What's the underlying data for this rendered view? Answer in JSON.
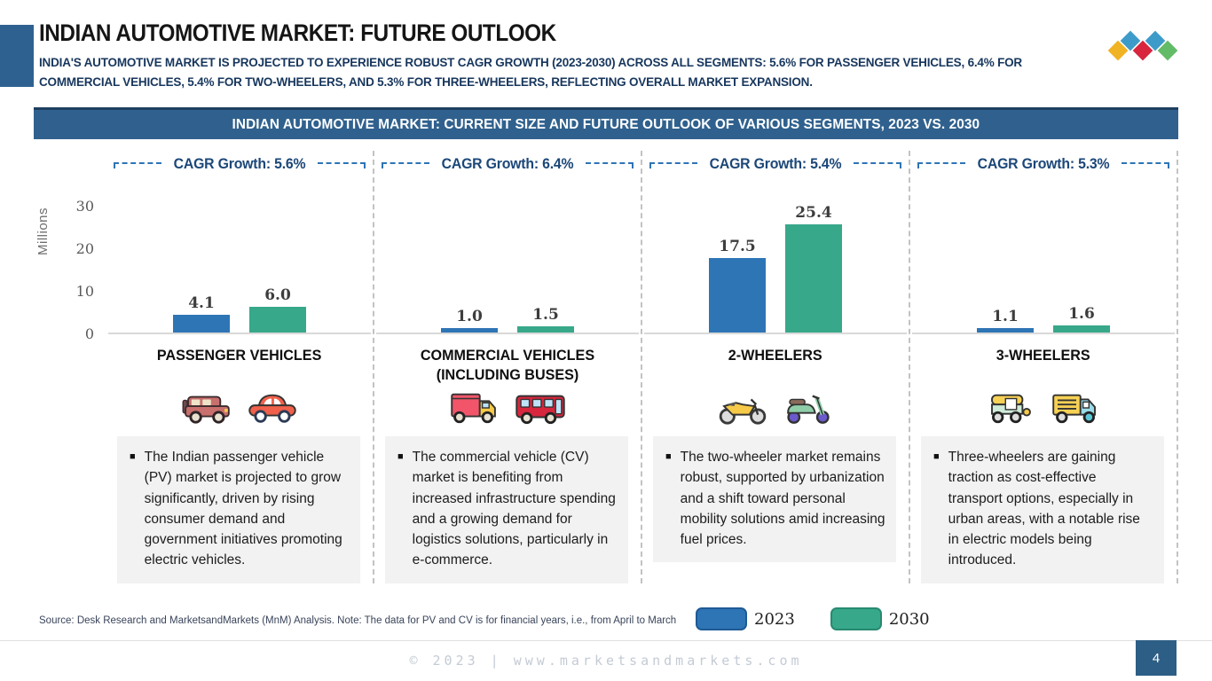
{
  "slide": {
    "title": "INDIAN AUTOMOTIVE MARKET: FUTURE OUTLOOK",
    "subtitle": "INDIA'S AUTOMOTIVE MARKET IS PROJECTED TO EXPERIENCE ROBUST CAGR GROWTH (2023-2030) ACROSS ALL SEGMENTS: 5.6% FOR PASSENGER VEHICLES, 6.4% FOR COMMERCIAL VEHICLES, 5.4% FOR TWO-WHEELERS, AND 5.3% FOR THREE-WHEELERS, REFLECTING OVERALL MARKET EXPANSION.",
    "banner_title": "INDIAN AUTOMOTIVE MARKET: CURRENT SIZE AND FUTURE OUTLOOK OF VARIOUS SEGMENTS, 2023 VS. 2030"
  },
  "chart_data": {
    "type": "bar",
    "title": "INDIAN AUTOMOTIVE MARKET: CURRENT SIZE AND FUTURE OUTLOOK OF VARIOUS SEGMENTS, 2023 VS. 2030",
    "categories": [
      "PASSENGER VEHICLES",
      "COMMERCIAL VEHICLES (INCLUDING BUSES)",
      "2-WHEELERS",
      "3-WHEELERS"
    ],
    "series": [
      {
        "name": "2023",
        "color": "#2E75B6",
        "values": [
          4.1,
          1.0,
          17.5,
          1.1
        ]
      },
      {
        "name": "2030",
        "color": "#38A88A",
        "values": [
          6.0,
          1.5,
          25.4,
          1.6
        ]
      }
    ],
    "annotations": [
      "CAGR Growth: 5.6%",
      "CAGR Growth: 6.4%",
      "CAGR Growth: 5.4%",
      "CAGR Growth: 5.3%"
    ],
    "xlabel": "",
    "ylabel": "Millions",
    "ylim": [
      0,
      30
    ],
    "yticks": [
      0,
      10,
      20,
      30
    ],
    "grid": false,
    "legend_position": "bottom"
  },
  "axis": {
    "unit_label": "Millions",
    "ticks": [
      "30",
      "20",
      "10",
      "0"
    ]
  },
  "panels": [
    {
      "cagr_label": "CAGR Growth: 5.6%",
      "segment_title": "PASSENGER VEHICLES",
      "label_2023": "4.1",
      "label_2030": "6.0",
      "icons": [
        "suv-icon",
        "car-icon"
      ],
      "description": "The Indian passenger vehicle (PV) market is projected to grow significantly, driven by rising consumer demand and government initiatives promoting electric vehicles."
    },
    {
      "cagr_label": "CAGR Growth: 6.4%",
      "segment_title": "COMMERCIAL VEHICLES (INCLUDING BUSES)",
      "label_2023": "1.0",
      "label_2030": "1.5",
      "icons": [
        "truck-icon",
        "bus-icon"
      ],
      "description": "The commercial vehicle (CV) market is benefiting from increased infrastructure spending and a growing demand for logistics solutions, particularly in e-commerce."
    },
    {
      "cagr_label": "CAGR Growth: 5.4%",
      "segment_title": "2-WHEELERS",
      "label_2023": "17.5",
      "label_2030": "25.4",
      "icons": [
        "motorcycle-icon",
        "scooter-icon"
      ],
      "description": "The two-wheeler market remains robust, supported by urbanization and a shift toward personal mobility solutions amid increasing fuel prices."
    },
    {
      "cagr_label": "CAGR Growth: 5.3%",
      "segment_title": "3-WHEELERS",
      "label_2023": "1.1",
      "label_2030": "1.6",
      "icons": [
        "auto-rickshaw-icon",
        "cargo-rickshaw-icon"
      ],
      "description": "Three-wheelers are gaining traction as cost-effective transport options, especially in urban areas, with a notable rise in electric models being introduced."
    }
  ],
  "legend": {
    "items": [
      {
        "label": "2023",
        "color": "#2E75B6"
      },
      {
        "label": "2030",
        "color": "#38A88A"
      }
    ]
  },
  "source_note": "Source: Desk Research and MarketsandMarkets (MnM) Analysis. Note: The data for PV and CV is for financial years, i.e., from April to March",
  "footer": {
    "copyright": "© 2023 | www.marketsandmarkets.com",
    "page_number": "4"
  },
  "logo": {
    "diamond_colors": [
      "#F0B323",
      "#3D9BC9",
      "#D7263D",
      "#3D9BC9",
      "#62BB66"
    ]
  },
  "colors": {
    "bar_2023": "#2E75B6",
    "bar_2030": "#38A88A",
    "banner_bg": "#30618E",
    "accent_bar": "#2E6190",
    "navy_text": "#17365D",
    "cagr_bracket": "#2E74B5",
    "textbox_bg": "#F2F2F2",
    "page_number_bg": "#2D5E86"
  }
}
